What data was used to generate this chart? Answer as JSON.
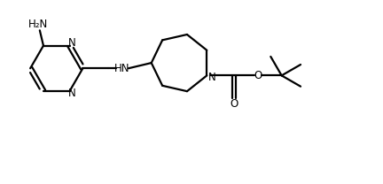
{
  "bg_color": "#ffffff",
  "line_color": "#000000",
  "line_width": 1.6,
  "font_size": 8.5,
  "fig_width": 4.32,
  "fig_height": 2.08,
  "dpi": 100,
  "xlim": [
    0,
    10.5
  ],
  "ylim": [
    0,
    5.0
  ]
}
